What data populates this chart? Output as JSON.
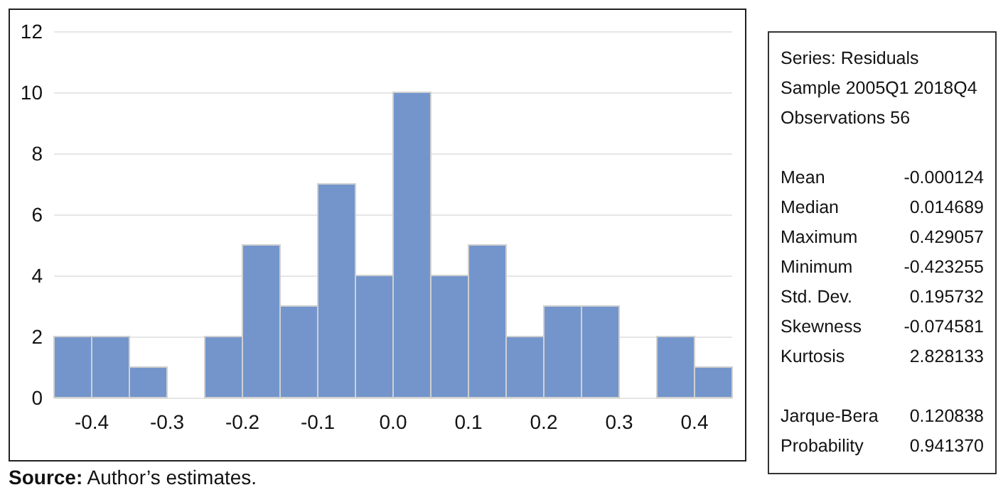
{
  "chart_data": [
    {
      "type": "histogram",
      "bins": [
        -0.45,
        -0.4,
        -0.35,
        -0.3,
        -0.25,
        -0.2,
        -0.15,
        -0.1,
        -0.05,
        0,
        0.05,
        0.1,
        0.15,
        0.2,
        0.25,
        0.3,
        0.35,
        0.4,
        0.45
      ],
      "values": [
        2,
        2,
        1,
        0,
        2,
        5,
        3,
        7,
        4,
        10,
        4,
        5,
        2,
        3,
        3,
        0,
        2,
        1
      ],
      "color": "#7395cc",
      "xlim": [
        -0.45,
        0.45
      ],
      "xticks": [
        -0.4,
        -0.3,
        -0.2,
        -0.1,
        {
          "value": 0,
          "label": "0.0"
        },
        0.1,
        0.2,
        0.3,
        0.4
      ],
      "ylim": [
        0,
        12
      ],
      "yticks": [
        0,
        2,
        4,
        6,
        8,
        10,
        12
      ],
      "grid": "y",
      "annotations": [
        "Source: Author’s estimates."
      ]
    },
    {
      "type": "other",
      "annotations": [
        "Series: Residuals",
        "Sample 2005Q1 2018Q4",
        "Observations 56"
      ],
      "categories": [
        "Mean",
        "Median",
        "Maximum",
        "Minimum",
        "Std. Dev.",
        "Skewness",
        "Kurtosis",
        null,
        "Jarque-Bera",
        "Probability"
      ],
      "value_labels": [
        "-0.000124",
        "0.014689",
        "0.429057",
        "-0.423255",
        "0.195732",
        "-0.074581",
        "2.828133",
        null,
        "0.120838",
        "0.941370"
      ]
    }
  ]
}
